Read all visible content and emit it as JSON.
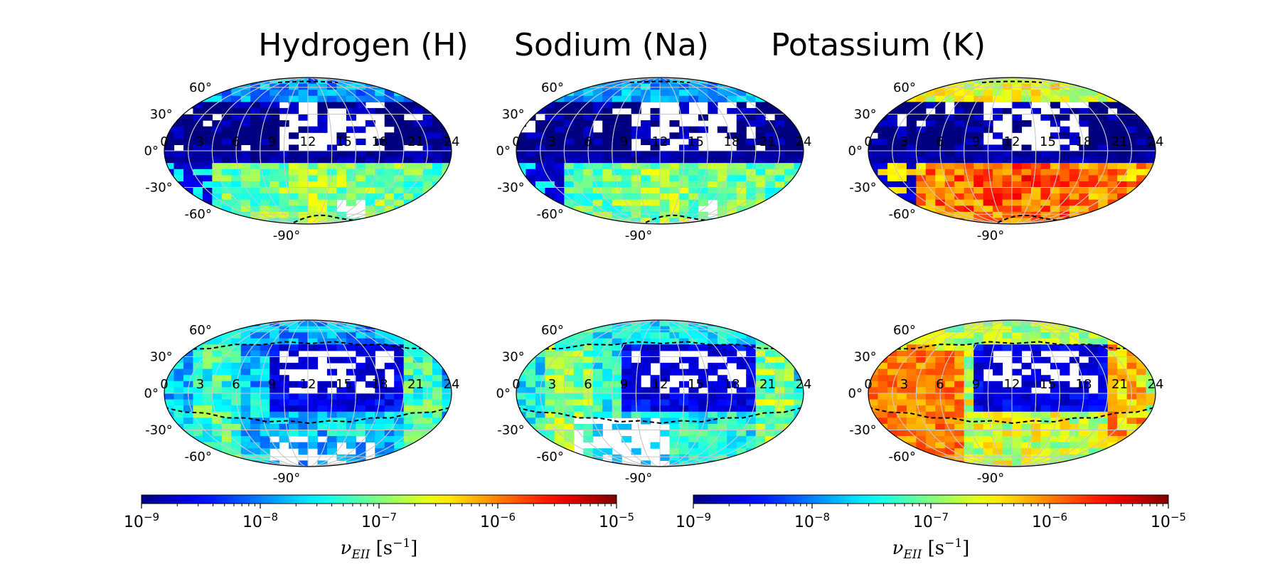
{
  "chart_data": {
    "type": "heatmap",
    "projection": "mollweide",
    "scale": "log",
    "colormap": "jet",
    "grid": true,
    "columns": [
      "Hydrogen (H)",
      "Sodium (Na)",
      "Potassium (K)"
    ],
    "rows": 2,
    "lon_tick_labels": [
      "0",
      "3",
      "6",
      "9",
      "12",
      "15",
      "18",
      "21",
      "24"
    ],
    "lat_tick_labels": [
      "60°",
      "30°",
      "0°",
      "-30°",
      "-60°",
      "-90°"
    ],
    "colorbars": [
      {
        "label_base": "ν",
        "label_sub": "EII",
        "label_unit": " [s",
        "label_exp": "−1",
        "label_end": "]",
        "range": [
          1e-09,
          1e-05
        ],
        "tick_base": "10",
        "tick_exps": [
          "−9",
          "−8",
          "−7",
          "−6",
          "−5"
        ]
      },
      {
        "label_base": "ν",
        "label_sub": "EII",
        "label_unit": " [s",
        "label_exp": "−1",
        "label_end": "]",
        "range": [
          1e-09,
          1e-05
        ],
        "tick_base": "10",
        "tick_exps": [
          "−9",
          "−8",
          "−7",
          "−6",
          "−5"
        ]
      }
    ],
    "panels": [
      {
        "row": 0,
        "col": 0,
        "species": "H",
        "south_mean_log10": -7.3,
        "north_mean_log10": -7.9,
        "peak_log10": -7.0,
        "equator_band_log10": -9.0
      },
      {
        "row": 0,
        "col": 1,
        "species": "Na",
        "south_mean_log10": -7.3,
        "north_mean_log10": -7.8,
        "peak_log10": -6.9,
        "equator_band_log10": -9.0
      },
      {
        "row": 0,
        "col": 2,
        "species": "K",
        "south_mean_log10": -6.2,
        "north_mean_log10": -7.2,
        "peak_log10": -5.8,
        "equator_band_log10": -9.0
      },
      {
        "row": 1,
        "col": 0,
        "species": "H",
        "south_mean_log10": -7.7,
        "north_mean_log10": -7.8,
        "peak_log10": -7.2,
        "equator_band_log10": -8.6
      },
      {
        "row": 1,
        "col": 1,
        "species": "Na",
        "south_mean_log10": -7.4,
        "north_mean_log10": -7.5,
        "peak_log10": -6.9,
        "equator_band_log10": -8.4
      },
      {
        "row": 1,
        "col": 2,
        "species": "K",
        "south_mean_log10": -6.7,
        "north_mean_log10": -6.8,
        "peak_log10": -6.0,
        "equator_band_log10": -7.4
      }
    ]
  }
}
